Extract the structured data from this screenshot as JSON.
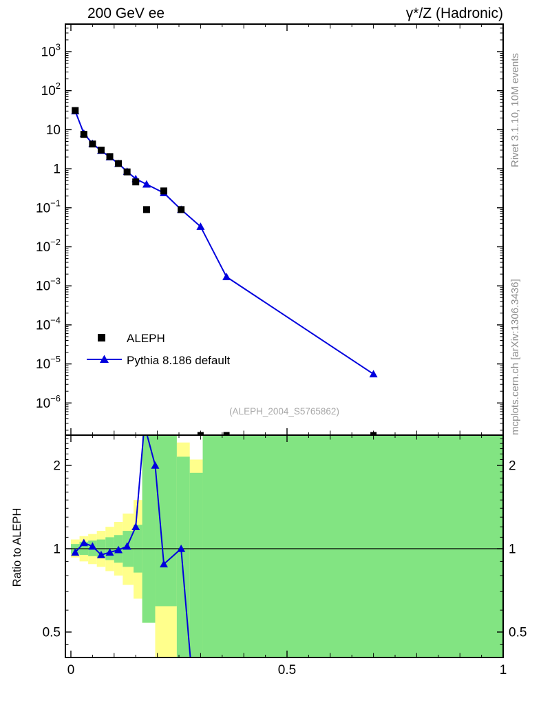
{
  "header": {
    "title_left": "200 GeV ee",
    "title_right": "γ*/Z (Hadronic)"
  },
  "side_captions": {
    "top_right": "Rivet 3.1.10,  10M events",
    "bottom_right": "mcplots.cern.ch [arXiv:1306.3436]"
  },
  "watermark": "(ALEPH_2004_S5765862)",
  "legend": {
    "items": [
      {
        "label": "ALEPH",
        "marker": "black-square"
      },
      {
        "label": "Pythia 8.186 default",
        "marker": "blue-line-triangle"
      }
    ]
  },
  "colors": {
    "pythia_blue": "#0000dd",
    "band_yellow": "#ffff8c",
    "band_green": "#82e482",
    "reference_black": "#000000"
  },
  "chart_data": [
    {
      "type": "line",
      "title": "200 GeV ee",
      "right_title": "γ*/Z (Hadronic)",
      "xlim": [
        0,
        1
      ],
      "ylog": true,
      "ylim_exponents": [
        -6.82,
        3.7
      ],
      "x_ticks": [
        0,
        0.5,
        1
      ],
      "x_tick_labels": [
        "0",
        "0.5",
        "1"
      ],
      "y_tick_exponents": [
        3,
        2,
        1,
        0,
        -1,
        -2,
        -3,
        -4,
        -5,
        -6
      ],
      "series": [
        {
          "name": "ALEPH",
          "type": "scatter",
          "marker": "square",
          "color": "#000000",
          "points": [
            [
              0.01,
              31
            ],
            [
              0.03,
              7.6
            ],
            [
              0.05,
              4.3
            ],
            [
              0.07,
              3.0
            ],
            [
              0.09,
              2.05
            ],
            [
              0.11,
              1.36
            ],
            [
              0.13,
              0.83
            ],
            [
              0.15,
              0.46
            ],
            [
              0.175,
              0.09
            ],
            [
              0.215,
              0.27
            ],
            [
              0.255,
              0.09
            ]
          ],
          "offscale_x": [
            0.3,
            0.36,
            0.7
          ]
        },
        {
          "name": "Pythia 8.186 default",
          "type": "line",
          "marker": "triangle-up",
          "color": "#0000dd",
          "points": [
            [
              0.01,
              30
            ],
            [
              0.03,
              8.0
            ],
            [
              0.05,
              4.4
            ],
            [
              0.07,
              2.9
            ],
            [
              0.09,
              2.0
            ],
            [
              0.11,
              1.35
            ],
            [
              0.13,
              0.85
            ],
            [
              0.15,
              0.55
            ],
            [
              0.175,
              0.4
            ],
            [
              0.215,
              0.24
            ],
            [
              0.255,
              0.09
            ],
            [
              0.3,
              0.033
            ],
            [
              0.36,
              0.0017
            ],
            [
              0.7,
              5.5e-06
            ]
          ]
        }
      ]
    },
    {
      "type": "ratio",
      "ylabel": "Ratio to ALEPH",
      "ylog": true,
      "ylim": [
        0.405,
        2.57
      ],
      "y_ticks": [
        0.5,
        1,
        2
      ],
      "y_tick_labels": [
        "0.5",
        "1",
        "2"
      ],
      "reference": 1,
      "bands": {
        "yellow": [
          [
            0.0,
            0.02,
            0.93,
            1.08
          ],
          [
            0.02,
            0.04,
            0.9,
            1.11
          ],
          [
            0.04,
            0.06,
            0.88,
            1.13
          ],
          [
            0.06,
            0.08,
            0.86,
            1.16
          ],
          [
            0.08,
            0.1,
            0.83,
            1.2
          ],
          [
            0.1,
            0.12,
            0.8,
            1.25
          ],
          [
            0.12,
            0.145,
            0.74,
            1.34
          ],
          [
            0.145,
            0.165,
            0.66,
            1.5
          ],
          [
            0.165,
            0.195,
            0.54,
            3.0
          ],
          [
            0.195,
            0.245,
            0.38,
            3.0
          ],
          [
            0.245,
            0.275,
            0.38,
            2.42
          ],
          [
            0.275,
            0.305,
            0.38,
            2.1
          ],
          [
            0.305,
            1.0,
            0.38,
            3.0
          ]
        ],
        "green": [
          [
            0.0,
            0.02,
            0.96,
            1.04
          ],
          [
            0.02,
            0.04,
            0.95,
            1.06
          ],
          [
            0.04,
            0.06,
            0.94,
            1.07
          ],
          [
            0.06,
            0.08,
            0.93,
            1.08
          ],
          [
            0.08,
            0.1,
            0.91,
            1.1
          ],
          [
            0.1,
            0.12,
            0.89,
            1.12
          ],
          [
            0.12,
            0.145,
            0.86,
            1.16
          ],
          [
            0.145,
            0.165,
            0.82,
            1.22
          ],
          [
            0.165,
            0.195,
            0.54,
            3.0
          ],
          [
            0.195,
            0.245,
            0.62,
            3.0
          ],
          [
            0.245,
            0.275,
            0.38,
            2.15
          ],
          [
            0.275,
            0.305,
            0.38,
            1.88
          ],
          [
            0.305,
            1.0,
            0.38,
            3.0
          ]
        ]
      },
      "line": {
        "name": "Pythia 8.186 default",
        "color": "#0000dd",
        "points": [
          [
            0.01,
            0.97
          ],
          [
            0.03,
            1.05
          ],
          [
            0.05,
            1.02
          ],
          [
            0.07,
            0.95
          ],
          [
            0.09,
            0.97
          ],
          [
            0.11,
            0.99
          ],
          [
            0.13,
            1.02
          ],
          [
            0.15,
            1.2
          ],
          [
            0.17,
            2.8
          ],
          [
            0.195,
            2.0
          ],
          [
            0.215,
            0.88
          ],
          [
            0.255,
            1.0
          ],
          [
            0.285,
            0.28
          ]
        ],
        "markers": [
          [
            0.01,
            0.97
          ],
          [
            0.03,
            1.05
          ],
          [
            0.05,
            1.02
          ],
          [
            0.07,
            0.95
          ],
          [
            0.09,
            0.97
          ],
          [
            0.11,
            0.99
          ],
          [
            0.13,
            1.02
          ],
          [
            0.15,
            1.2
          ],
          [
            0.195,
            2.0
          ],
          [
            0.215,
            0.88
          ],
          [
            0.255,
            1.0
          ]
        ]
      }
    }
  ]
}
